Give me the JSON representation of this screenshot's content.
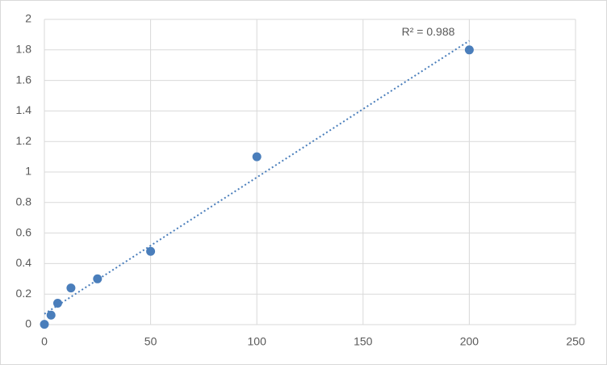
{
  "chart_data": {
    "type": "scatter",
    "x": [
      0,
      3.125,
      6.25,
      12.5,
      25,
      50,
      100,
      200
    ],
    "series": [
      {
        "color": "#4a7ebb",
        "values": [
          0.002,
          0.062,
          0.14,
          0.24,
          0.3,
          0.48,
          1.1,
          1.8
        ]
      }
    ],
    "trendline": {
      "x": [
        0,
        200
      ],
      "values": [
        0.07,
        1.86
      ],
      "color": "#4a7ebb",
      "label": "R² = 0.988"
    },
    "xlim": [
      0,
      250
    ],
    "xticks": [
      0,
      50,
      100,
      150,
      200,
      250
    ],
    "ylim": [
      0,
      2
    ],
    "yticks": [
      0,
      0.2,
      0.4,
      0.6,
      0.8,
      1,
      1.2,
      1.4,
      1.6,
      1.8,
      2
    ],
    "grid": true
  }
}
